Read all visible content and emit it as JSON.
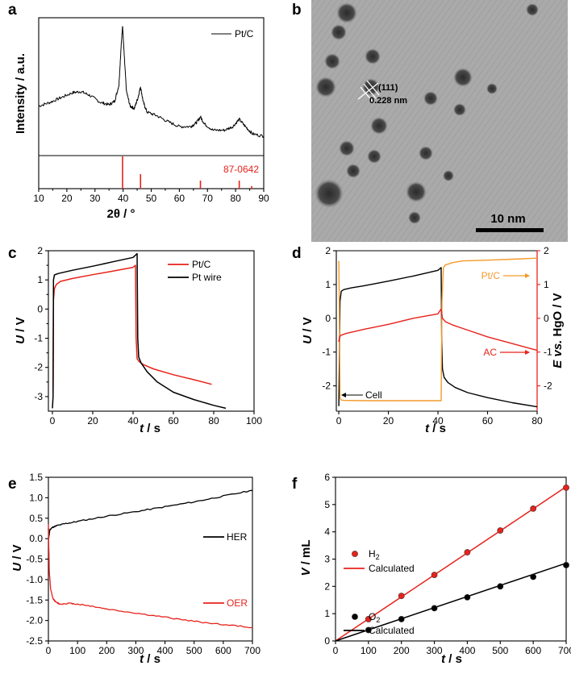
{
  "panels": {
    "a": {
      "label": "a"
    },
    "b": {
      "label": "b"
    },
    "c": {
      "label": "c"
    },
    "d": {
      "label": "d"
    },
    "e": {
      "label": "e"
    },
    "f": {
      "label": "f"
    }
  },
  "tem": {
    "plane_label": "(111)",
    "spacing_label": "0.228 nm",
    "scalebar_label": "10 nm"
  },
  "colors": {
    "black": "#000000",
    "red": "#e8221b",
    "orange": "#f39a2b"
  },
  "chart_data": [
    {
      "panel": "a",
      "type": "line",
      "title": "",
      "xlabel": "2θ / °",
      "ylabel": "Intensity / a.u.",
      "xlim": [
        10,
        90
      ],
      "xticks": [
        10,
        20,
        30,
        40,
        50,
        60,
        70,
        80,
        90
      ],
      "legend": [
        "Pt/C"
      ],
      "reference_label": "87-0642",
      "reference_peaks": [
        {
          "x": 39.8,
          "rel_intensity": 1.0
        },
        {
          "x": 46.2,
          "rel_intensity": 0.45
        },
        {
          "x": 67.5,
          "rel_intensity": 0.25
        },
        {
          "x": 81.3,
          "rel_intensity": 0.25
        },
        {
          "x": 85.7,
          "rel_intensity": 0.08
        }
      ],
      "series": [
        {
          "name": "Pt/C",
          "color": "#000000",
          "x": [
            10,
            14,
            18,
            22,
            25,
            28,
            32,
            35,
            37,
            38.5,
            39.2,
            39.8,
            40.4,
            41.2,
            42.5,
            44,
            45.3,
            46.2,
            47.2,
            48.5,
            52,
            56,
            60,
            64,
            66,
            67.5,
            69,
            72,
            76,
            79,
            81.3,
            83.5,
            86,
            90
          ],
          "y": [
            0.33,
            0.36,
            0.4,
            0.44,
            0.45,
            0.42,
            0.36,
            0.34,
            0.37,
            0.5,
            0.78,
            1.0,
            0.75,
            0.45,
            0.33,
            0.31,
            0.4,
            0.49,
            0.36,
            0.28,
            0.25,
            0.2,
            0.16,
            0.16,
            0.19,
            0.24,
            0.18,
            0.13,
            0.13,
            0.16,
            0.22,
            0.16,
            0.1,
            0.08
          ]
        }
      ]
    },
    {
      "panel": "c",
      "type": "line",
      "xlabel": "t / s",
      "ylabel": "U / V",
      "xlim": [
        -2,
        100
      ],
      "ylim": [
        -3.5,
        2
      ],
      "xticks": [
        0,
        20,
        40,
        60,
        80,
        100
      ],
      "yticks": [
        -3,
        -2.5,
        -2,
        -1.5,
        -1,
        -0.5,
        0,
        0.5,
        1,
        1.5,
        2
      ],
      "legend": [
        "Pt/C",
        "Pt wire"
      ],
      "series": [
        {
          "name": "Pt/C",
          "color": "#e8221b",
          "x": [
            0.3,
            0.5,
            1,
            2,
            4,
            10,
            20,
            30,
            40,
            41.2,
            41.5,
            42,
            43,
            45,
            50,
            60,
            70,
            79
          ],
          "y": [
            -2.8,
            0.3,
            0.7,
            0.85,
            0.95,
            1.05,
            1.18,
            1.3,
            1.43,
            1.5,
            -1.0,
            -1.7,
            -1.8,
            -1.9,
            -2.05,
            -2.25,
            -2.42,
            -2.58
          ]
        },
        {
          "name": "Pt wire",
          "color": "#000000",
          "x": [
            0,
            0.3,
            0.5,
            1,
            3,
            10,
            20,
            30,
            40,
            42,
            42.3,
            42.8,
            44,
            47,
            52,
            60,
            70,
            80,
            86
          ],
          "y": [
            -3.4,
            -3.0,
            1.0,
            1.17,
            1.22,
            1.33,
            1.47,
            1.62,
            1.77,
            1.9,
            -1.0,
            -1.65,
            -1.85,
            -2.15,
            -2.5,
            -2.85,
            -3.1,
            -3.3,
            -3.4
          ]
        }
      ]
    },
    {
      "panel": "d",
      "type": "line",
      "xlabel": "t / s",
      "ylabel": "U / V",
      "y2label": "E vs. HgO / V",
      "xlim": [
        -1,
        80
      ],
      "ylim": [
        -2.75,
        2
      ],
      "y2lim": [
        -2.75,
        2
      ],
      "xticks": [
        0,
        20,
        40,
        60,
        80
      ],
      "yticks": [
        -2,
        -1,
        0,
        1,
        2
      ],
      "y2ticks": [
        -2,
        -1,
        0,
        1,
        2
      ],
      "annotations": [
        "Pt/C",
        "AC",
        "Cell"
      ],
      "series": [
        {
          "name": "Cell",
          "color": "#000000",
          "x": [
            0,
            0.2,
            0.5,
            1,
            2,
            5,
            10,
            20,
            30,
            40,
            41.3,
            41.5,
            41.8,
            42.5,
            44,
            47,
            52,
            60,
            70,
            80
          ],
          "y": [
            -2.6,
            -1.5,
            0.5,
            0.8,
            0.85,
            0.9,
            0.96,
            1.1,
            1.25,
            1.42,
            1.5,
            -0.5,
            -1.5,
            -1.75,
            -1.9,
            -2.05,
            -2.2,
            -2.35,
            -2.5,
            -2.62
          ]
        },
        {
          "name": "Pt/C",
          "color": "#f39a2b",
          "x": [
            0,
            0.2,
            0.5,
            1,
            2,
            10,
            20,
            30,
            40,
            41.3,
            41.6,
            42.2,
            43,
            46,
            50,
            60,
            70,
            80
          ],
          "y": [
            1.7,
            0.5,
            -2.35,
            -2.42,
            -2.43,
            -2.44,
            -2.44,
            -2.44,
            -2.44,
            -2.44,
            0.5,
            1.5,
            1.58,
            1.65,
            1.7,
            1.72,
            1.75,
            1.78
          ]
        },
        {
          "name": "AC",
          "color": "#e8221b",
          "x": [
            0,
            0.3,
            1,
            3,
            10,
            20,
            30,
            40,
            41.3,
            41.8,
            43,
            46,
            50,
            60,
            70,
            80
          ],
          "y": [
            -0.7,
            -0.55,
            -0.5,
            -0.45,
            -0.33,
            -0.18,
            0.0,
            0.13,
            0.28,
            0.0,
            -0.1,
            -0.2,
            -0.3,
            -0.55,
            -0.75,
            -0.95
          ]
        }
      ]
    },
    {
      "panel": "e",
      "type": "line",
      "xlabel": "t / s",
      "ylabel": "U / V",
      "xlim": [
        0,
        700
      ],
      "ylim": [
        -2.5,
        1.5
      ],
      "xticks": [
        0,
        100,
        200,
        300,
        400,
        500,
        600,
        700
      ],
      "yticks": [
        -2.5,
        -2.0,
        -1.5,
        -1.0,
        -0.5,
        0.0,
        0.5,
        1.0,
        1.5
      ],
      "legend": [
        "HER",
        "OER"
      ],
      "series": [
        {
          "name": "HER",
          "color": "#000000",
          "x": [
            0,
            1,
            5,
            15,
            30,
            60,
            100,
            200,
            300,
            400,
            500,
            600,
            700
          ],
          "y": [
            0.25,
            0.0,
            0.22,
            0.28,
            0.32,
            0.37,
            0.42,
            0.55,
            0.66,
            0.78,
            0.9,
            1.04,
            1.18
          ]
        },
        {
          "name": "OER",
          "color": "#e8221b",
          "x": [
            0,
            3,
            8,
            15,
            25,
            40,
            70,
            100,
            150,
            200,
            300,
            400,
            500,
            600,
            700
          ],
          "y": [
            0.35,
            -0.8,
            -1.25,
            -1.45,
            -1.55,
            -1.6,
            -1.58,
            -1.6,
            -1.65,
            -1.72,
            -1.82,
            -1.92,
            -2.02,
            -2.1,
            -2.17
          ]
        }
      ]
    },
    {
      "panel": "f",
      "type": "scatter",
      "xlabel": "t / s",
      "ylabel": "V / mL",
      "xlim": [
        0,
        700
      ],
      "ylim": [
        0,
        6
      ],
      "xticks": [
        0,
        100,
        200,
        300,
        400,
        500,
        600,
        700
      ],
      "yticks": [
        0,
        1,
        2,
        3,
        4,
        5,
        6
      ],
      "legend": [
        "H2",
        "Calculated",
        "O2",
        "Calculated"
      ],
      "series": [
        {
          "name": "H2",
          "color": "#e8221b",
          "kind": "points",
          "x": [
            100,
            200,
            300,
            400,
            500,
            600,
            700
          ],
          "y": [
            0.8,
            1.65,
            2.42,
            3.25,
            4.05,
            4.85,
            5.62
          ]
        },
        {
          "name": "H2 Calculated",
          "color": "#e8221b",
          "kind": "line",
          "x": [
            0,
            700
          ],
          "y": [
            0,
            5.65
          ]
        },
        {
          "name": "O2",
          "color": "#000000",
          "kind": "points",
          "x": [
            100,
            200,
            300,
            400,
            500,
            600,
            700
          ],
          "y": [
            0.4,
            0.8,
            1.2,
            1.6,
            2.0,
            2.35,
            2.78
          ]
        },
        {
          "name": "O2 Calculated",
          "color": "#000000",
          "kind": "line",
          "x": [
            0,
            700
          ],
          "y": [
            0,
            2.85
          ]
        }
      ]
    }
  ]
}
